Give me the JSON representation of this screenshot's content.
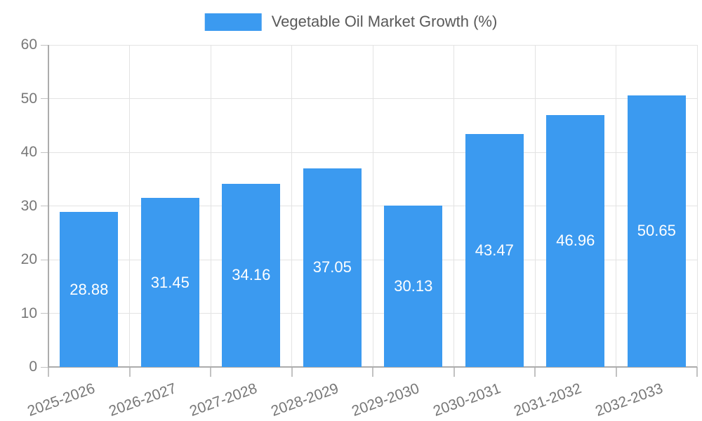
{
  "legend": {
    "label": "Vegetable Oil Market Growth (%)"
  },
  "chart_data": {
    "type": "bar",
    "title": "Vegetable Oil Market Growth (%)",
    "categories": [
      "2025-2026",
      "2026-2027",
      "2027-2028",
      "2028-2029",
      "2029-2030",
      "2030-2031",
      "2031-2032",
      "2032-2033"
    ],
    "values": [
      28.88,
      31.45,
      34.16,
      37.05,
      30.13,
      43.47,
      46.96,
      50.65
    ],
    "value_labels": [
      "28.88",
      "31.45",
      "34.16",
      "37.05",
      "30.13",
      "43.47",
      "46.96",
      "50.65"
    ],
    "xlabel": "",
    "ylabel": "",
    "ylim": [
      0,
      60
    ],
    "yticks": [
      0,
      10,
      20,
      30,
      40,
      50,
      60
    ],
    "grid": true,
    "legend_position": "top",
    "bar_color": "#3b9af0",
    "bar_label_color": "#ffffff",
    "grid_color": "#e3e3e3",
    "axis_color": "#acacac",
    "tick_color": "#c2c2c2",
    "tick_label_color": "#777777",
    "legend_text_color": "#595959"
  }
}
